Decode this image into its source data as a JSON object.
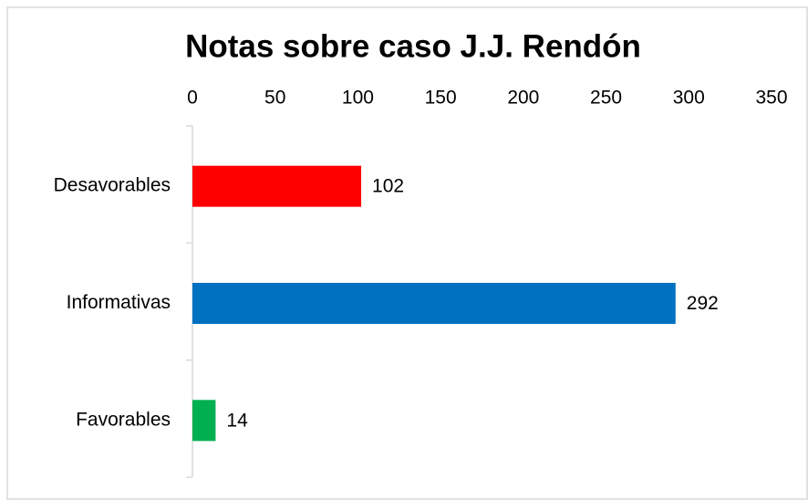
{
  "chart_data": {
    "type": "bar",
    "orientation": "horizontal",
    "title": "Notas sobre caso J.J. Rendón",
    "categories": [
      "Desavorables",
      "Informativas",
      "Favorables"
    ],
    "values": [
      102,
      292,
      14
    ],
    "colors": [
      "#ff0000",
      "#0070c0",
      "#00b050"
    ],
    "xlim": [
      0,
      350
    ],
    "xticks": [
      0,
      50,
      100,
      150,
      200,
      250,
      300,
      350
    ],
    "grid": false
  }
}
